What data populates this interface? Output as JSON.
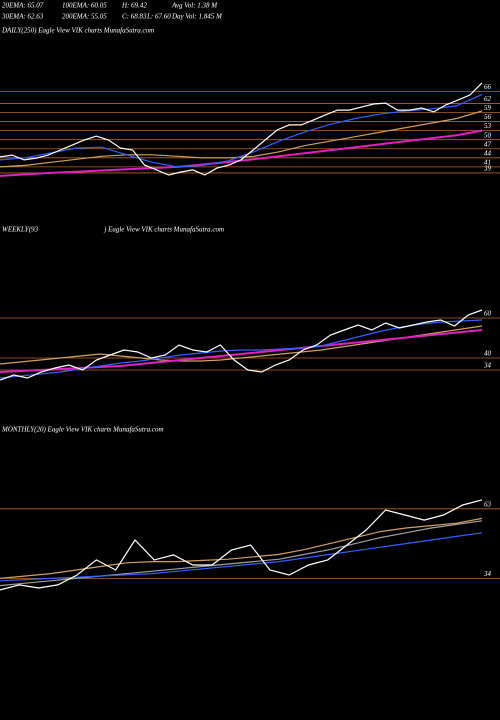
{
  "header": {
    "rows": [
      [
        "20EMA: 65.07",
        "100EMA: 60.05",
        "H: 69.42",
        "Avg Vol: 1.38  M"
      ],
      [
        "30EMA: 62.63",
        "200EMA: 55.05",
        "C: 68.83",
        "L: 67.60",
        "Day Vol: 1.845 M"
      ]
    ]
  },
  "chart_data": [
    {
      "type": "line",
      "title": "DAILY(250) Eagle  View  VIK charts MunafaSutra.com",
      "ylim": [
        35,
        83
      ],
      "yticks": [
        66,
        62,
        59,
        56,
        53,
        50,
        47,
        44,
        41,
        39
      ],
      "grid_color": "#b8651b",
      "series": [
        {
          "color": "#d0a060",
          "values": [
            41,
            41.5,
            42.5,
            43.5,
            44.5,
            45,
            45,
            44.5,
            44,
            44,
            44.5,
            46,
            48,
            49.5,
            51,
            52.5,
            54,
            55.5,
            57,
            59.5
          ]
        },
        {
          "color": "#e020c0",
          "values": [
            38,
            38.5,
            39,
            39.4,
            39.8,
            40.2,
            40.6,
            41,
            41.8,
            42.6,
            43.5,
            44.5,
            45.5,
            46.5,
            47.5,
            48.5,
            49.5,
            50.5,
            51.5,
            53
          ]
        },
        {
          "color": "#3060ff",
          "values": [
            43.3,
            44,
            45.6,
            47.2,
            47.5,
            45,
            42.5,
            41,
            41.5,
            43,
            46,
            49.5,
            52.5,
            55,
            57,
            58.5,
            59.5,
            60.2,
            61.2,
            65
          ]
        },
        {
          "color": "#ffffff",
          "values": [
            44.3,
            44.9,
            43.3,
            43.9,
            44.9,
            46.6,
            48.2,
            49.9,
            51.2,
            49.9,
            47.2,
            46.6,
            41.6,
            40,
            38.3,
            39.3,
            40,
            38.3,
            40.6,
            41.6,
            43.3,
            46.6,
            49.9,
            53.2,
            54.9,
            54.9,
            56.5,
            58.2,
            59.8,
            59.8,
            60.8,
            61.8,
            62.1,
            59.8,
            59.8,
            60.5,
            59.2,
            61.5,
            63.1,
            64.8,
            68.8
          ]
        }
      ]
    },
    {
      "type": "line",
      "title": "WEEKLY(93",
      "subtitle": ") Eagle   View  VIK charts MunafaSutra.com",
      "ylim": [
        24,
        104
      ],
      "yticks": [
        60,
        40,
        34
      ],
      "grid_color": "#b8651b",
      "series": [
        {
          "color": "#d0a060",
          "values": [
            37,
            38,
            39,
            40,
            41,
            42,
            41,
            40,
            39,
            38.5,
            38.5,
            39,
            40,
            41,
            42,
            43,
            44,
            45.5,
            47,
            48.5,
            50,
            51.5,
            53,
            54.5,
            56
          ]
        },
        {
          "color": "#e020c0",
          "values": [
            33,
            33.5,
            34,
            34.5,
            35,
            35.5,
            36,
            37,
            38,
            39,
            40,
            41,
            42,
            43,
            44,
            45,
            46,
            47,
            48,
            49,
            50,
            51,
            52,
            53,
            54
          ]
        },
        {
          "color": "#3060ff",
          "values": [
            30,
            31,
            32,
            33,
            34.5,
            36,
            37.5,
            38.5,
            40,
            41.5,
            42.5,
            43.5,
            44,
            44,
            44.5,
            45,
            46,
            48.5,
            51,
            53.5,
            55.5,
            57,
            58,
            58.5,
            59
          ]
        },
        {
          "color": "#ffffff",
          "values": [
            29,
            31.5,
            30,
            33,
            35,
            36.5,
            34,
            39,
            41.5,
            44,
            43,
            40,
            41.5,
            46.5,
            44,
            43,
            46.5,
            39,
            34,
            33,
            36.5,
            39,
            44,
            46.5,
            51.5,
            54,
            56.5,
            54,
            57.5,
            55,
            56.5,
            58,
            59,
            56,
            61.5,
            64
          ]
        }
      ]
    },
    {
      "type": "line",
      "title": "MONTHLY(20) Eagle  View  VIK charts MunafaSutra.com",
      "ylim": [
        25,
        100
      ],
      "yticks": [
        63,
        34
      ],
      "grid_color": "#b8651b",
      "series": [
        {
          "color": "#a0a0a0",
          "values": [
            31,
            32,
            33,
            34,
            35,
            36,
            37,
            38,
            39,
            40,
            41,
            42,
            44,
            46,
            48.5,
            51,
            53,
            55,
            56.5,
            58
          ]
        },
        {
          "color": "#d0a060",
          "values": [
            34,
            35,
            36,
            37.5,
            39,
            40.5,
            41,
            41,
            41.5,
            42,
            43,
            44,
            46,
            48.5,
            51,
            53.5,
            55,
            56,
            57,
            59
          ]
        },
        {
          "color": "#3060ff",
          "values": [
            33,
            33.5,
            34,
            34.5,
            35,
            35.5,
            36,
            37,
            38,
            39,
            40,
            41,
            42.5,
            44,
            45.5,
            47,
            48.5,
            50,
            51.5,
            53
          ]
        },
        {
          "color": "#ffffff",
          "values": [
            29.2,
            31.3,
            30,
            31.3,
            35.4,
            41.7,
            37.5,
            50,
            41.7,
            43.8,
            39.6,
            39.6,
            45.8,
            47.9,
            37.5,
            35.4,
            39.6,
            41.7,
            47.9,
            54.2,
            62.5,
            60.4,
            58.3,
            60.4,
            64.6,
            66.7
          ]
        }
      ]
    }
  ]
}
